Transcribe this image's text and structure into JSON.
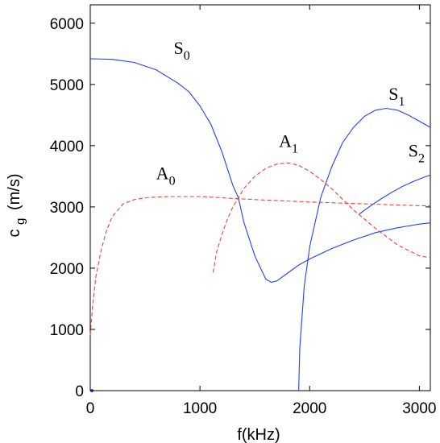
{
  "chart_data": {
    "type": "line",
    "title": "",
    "xlabel": "f(kHz)",
    "ylabel_main": "c",
    "ylabel_sub": "g",
    "ylabel_unit": "(m/s)",
    "xlim": [
      0,
      3100
    ],
    "ylim": [
      0,
      6300
    ],
    "xticks": [
      0,
      1000,
      2000,
      3000
    ],
    "yticks": [
      0,
      1000,
      2000,
      3000,
      4000,
      5000,
      6000
    ],
    "grid": false,
    "legend": "none",
    "series": [
      {
        "label_main": "S",
        "label_sub": "0",
        "mode": "symmetric",
        "color": "#1f3fff",
        "dash": "solid",
        "label_at": [
          760,
          5500
        ],
        "x": [
          0,
          200,
          400,
          600,
          800,
          900,
          1000,
          1100,
          1200,
          1300,
          1350,
          1400,
          1500,
          1600,
          1650,
          1700,
          1800,
          1900,
          2000,
          2200,
          2400,
          2600,
          2800,
          3000,
          3100
        ],
        "y": [
          5420,
          5410,
          5360,
          5240,
          5020,
          4880,
          4650,
          4350,
          3900,
          3350,
          3150,
          2750,
          2200,
          1820,
          1770,
          1790,
          1920,
          2050,
          2150,
          2320,
          2460,
          2580,
          2660,
          2720,
          2740
        ]
      },
      {
        "label_main": "S",
        "label_sub": "1",
        "mode": "symmetric",
        "color": "#1f3fff",
        "dash": "solid",
        "label_at": [
          2720,
          4750
        ],
        "x": [
          1900,
          1910,
          1950,
          2000,
          2100,
          2200,
          2300,
          2400,
          2500,
          2600,
          2700,
          2800,
          2900,
          3000,
          3100
        ],
        "y": [
          0,
          700,
          1700,
          2350,
          3150,
          3650,
          4050,
          4300,
          4480,
          4580,
          4610,
          4580,
          4500,
          4400,
          4300
        ]
      },
      {
        "label_main": "S",
        "label_sub": "2",
        "mode": "symmetric",
        "color": "#1f3fff",
        "dash": "solid",
        "label_at": [
          2900,
          3820
        ],
        "x": [
          2450,
          2550,
          2650,
          2750,
          2850,
          2950,
          3050,
          3100
        ],
        "y": [
          2880,
          3010,
          3130,
          3240,
          3340,
          3420,
          3490,
          3520
        ]
      },
      {
        "label_main": "A",
        "label_sub": "0",
        "mode": "antisymmetric",
        "color": "#e8423a",
        "dash": "dashed",
        "label_at": [
          600,
          3450
        ],
        "x": [
          0,
          20,
          50,
          100,
          150,
          200,
          300,
          400,
          500,
          700,
          1000,
          1500,
          2000,
          2500,
          3000,
          3100
        ],
        "y": [
          900,
          1350,
          1850,
          2300,
          2620,
          2840,
          3050,
          3120,
          3150,
          3170,
          3170,
          3120,
          3080,
          3050,
          3020,
          3020
        ]
      },
      {
        "label_main": "A",
        "label_sub": "1",
        "mode": "antisymmetric",
        "color": "#e8423a",
        "dash": "dashed",
        "label_at": [
          1720,
          3980
        ],
        "x": [
          1120,
          1150,
          1200,
          1250,
          1300,
          1400,
          1500,
          1600,
          1700,
          1800,
          1900,
          2000,
          2100,
          2200,
          2400,
          2600,
          2800,
          3000,
          3100
        ],
        "y": [
          1930,
          2250,
          2550,
          2800,
          3000,
          3300,
          3500,
          3630,
          3700,
          3720,
          3680,
          3580,
          3450,
          3300,
          2950,
          2650,
          2380,
          2200,
          2170
        ]
      }
    ]
  }
}
